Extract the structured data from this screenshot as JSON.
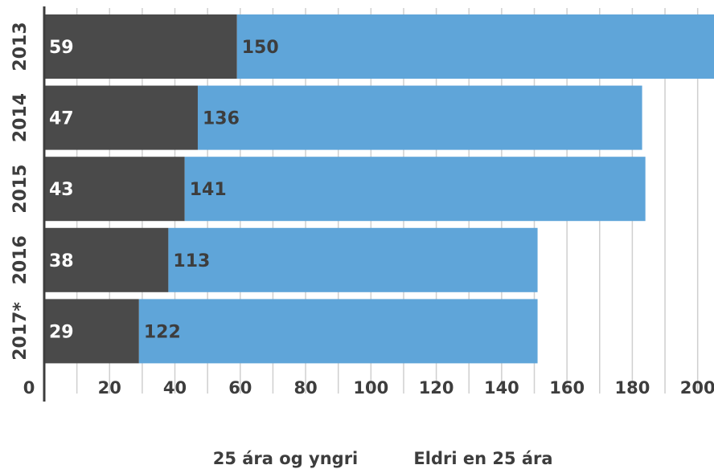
{
  "chart_data": {
    "type": "bar",
    "orientation": "horizontal",
    "stacked": true,
    "title": "",
    "xlabel": "",
    "ylabel": "",
    "categories": [
      "2013",
      "2014",
      "2015",
      "2016",
      "2017*"
    ],
    "series": [
      {
        "name": "25 ára og yngri",
        "values": [
          59,
          47,
          43,
          38,
          29
        ],
        "color": "#4a4a4a"
      },
      {
        "name": "Eldri en 25 ára",
        "values": [
          150,
          136,
          141,
          113,
          122
        ],
        "color": "#5fa5d9"
      }
    ],
    "xlim": [
      0,
      205
    ],
    "xticks": [
      0,
      20,
      40,
      60,
      80,
      100,
      120,
      140,
      160,
      180,
      200
    ],
    "grid": true,
    "legend_position": "bottom"
  }
}
